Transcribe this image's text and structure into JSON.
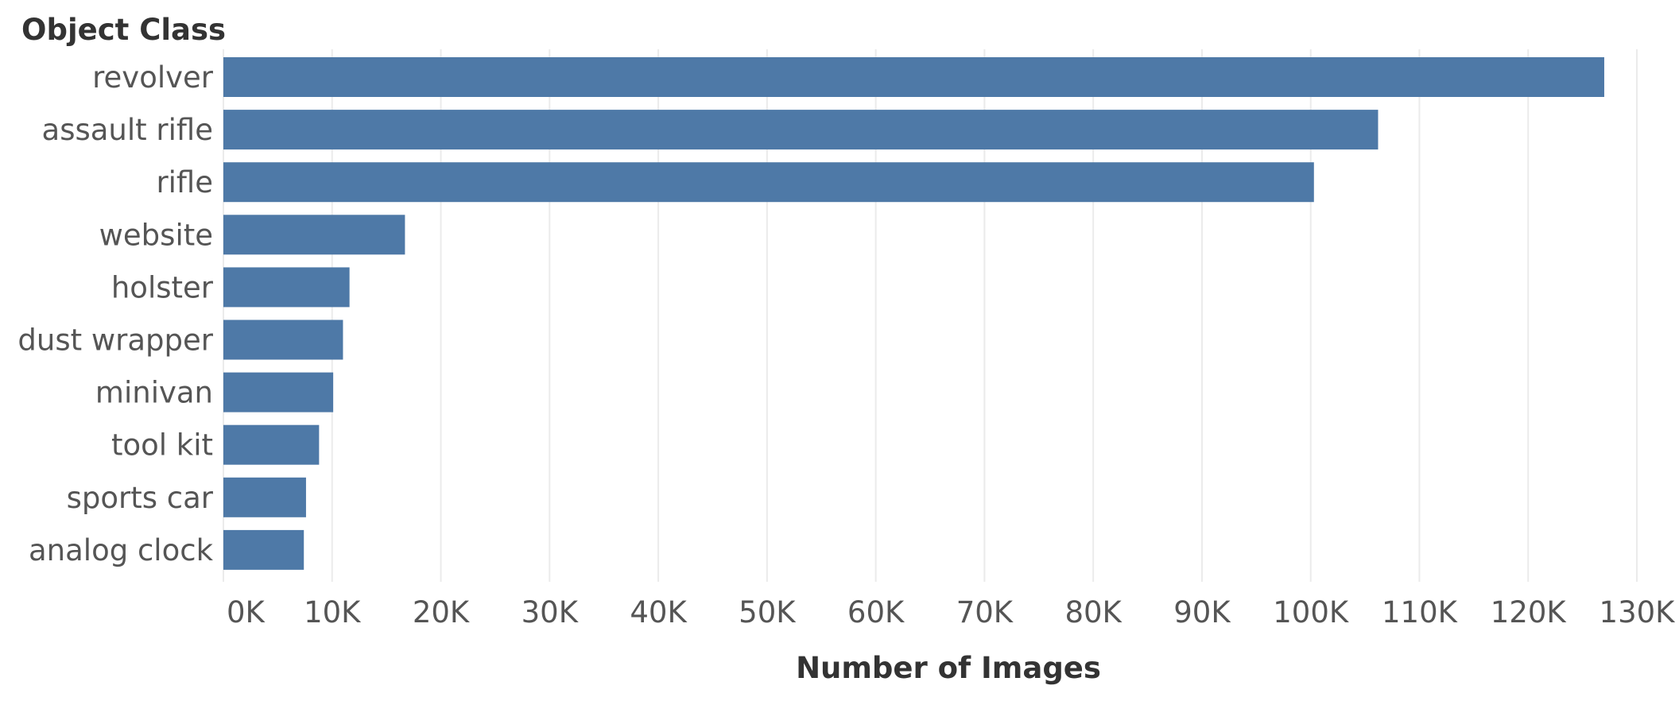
{
  "chart_data": {
    "type": "bar",
    "orientation": "horizontal",
    "title": "",
    "ylabel": "Object Class",
    "xlabel": "Number of Images",
    "categories": [
      "revolver",
      "assault rifle",
      "rifle",
      "website",
      "holster",
      "dust wrapper",
      "minivan",
      "tool kit",
      "sports car",
      "analog clock"
    ],
    "values": [
      127000,
      106200,
      100300,
      16700,
      11600,
      11000,
      10100,
      8800,
      7600,
      7400
    ],
    "xlim": [
      0,
      130000
    ],
    "ticks": [
      0,
      10000,
      20000,
      30000,
      40000,
      50000,
      60000,
      70000,
      80000,
      90000,
      100000,
      110000,
      120000,
      130000
    ],
    "tick_labels": [
      "0K",
      "10K",
      "20K",
      "30K",
      "40K",
      "50K",
      "60K",
      "70K",
      "80K",
      "90K",
      "100K",
      "110K",
      "120K",
      "130K"
    ],
    "grid": true,
    "bar_color": "#4e79a7"
  }
}
